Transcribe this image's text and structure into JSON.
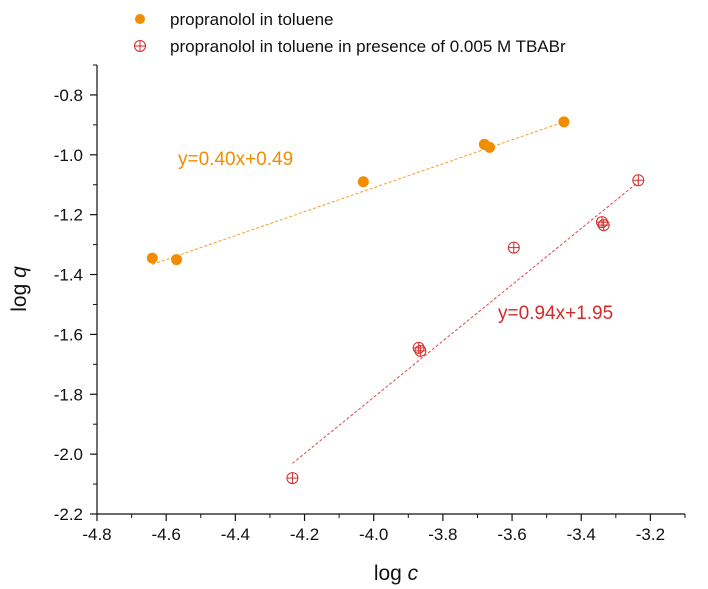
{
  "chart_data": {
    "type": "scatter",
    "xlabel_main": "log ",
    "xlabel_var": "c",
    "ylabel_main": "log ",
    "ylabel_var": "q",
    "xlim": [
      -4.8,
      -3.1
    ],
    "ylim": [
      -2.2,
      -0.7
    ],
    "xticks": [
      -4.8,
      -4.6,
      -4.4,
      -4.2,
      -4.0,
      -3.8,
      -3.6,
      -3.4,
      -3.2
    ],
    "xtick_labels": [
      "-4.8",
      "-4.6",
      "-4.4",
      "-4.2",
      "-4.0",
      "-3.8",
      "-3.6",
      "-3.4",
      "-3.2"
    ],
    "yticks": [
      -2.2,
      -2.0,
      -1.8,
      -1.6,
      -1.4,
      -1.2,
      -1.0,
      -0.8
    ],
    "ytick_labels": [
      "-2.2",
      "-2.0",
      "-1.8",
      "-1.6",
      "-1.4",
      "-1.2",
      "-1.0",
      "-0.8"
    ],
    "grid": false,
    "legend_position": "top",
    "series": [
      {
        "name": "propranolol in toluene",
        "marker": "filled-circle",
        "color": "#f28c00",
        "x": [
          -4.64,
          -4.57,
          -4.03,
          -3.68,
          -3.665,
          -3.45
        ],
        "y": [
          -1.345,
          -1.35,
          -1.09,
          -0.965,
          -0.975,
          -0.89
        ],
        "fit": {
          "label": "y=0.40x+0.49",
          "slope": 0.4,
          "intercept": 0.49,
          "x_range": [
            -4.64,
            -3.45
          ]
        }
      },
      {
        "name": "propranolol in toluene in presence of 0.005 M TBABr",
        "marker": "crossed-circle",
        "color": "#d42a2a",
        "x": [
          -4.235,
          -3.87,
          -3.865,
          -3.595,
          -3.34,
          -3.335,
          -3.235
        ],
        "y": [
          -2.08,
          -1.645,
          -1.655,
          -1.31,
          -1.225,
          -1.235,
          -1.085
        ],
        "fit": {
          "label": "y=0.94x+1.95",
          "slope": 0.94,
          "intercept": 1.95,
          "x_range": [
            -4.235,
            -3.235
          ]
        }
      }
    ]
  }
}
